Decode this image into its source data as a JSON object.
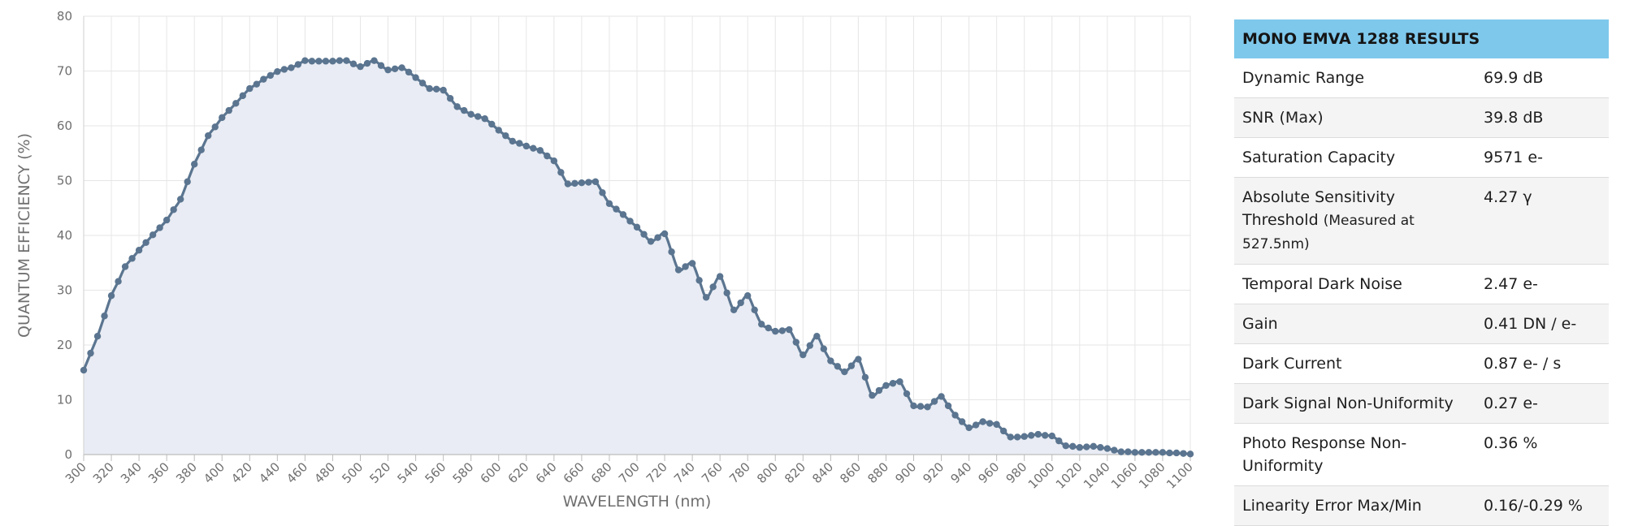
{
  "chart_data": {
    "type": "line",
    "title": "",
    "xlabel": "WAVELENGTH (nm)",
    "ylabel": "QUANTUM EFFICIENCY (%)",
    "xlim": [
      300,
      1100
    ],
    "ylim": [
      0,
      80
    ],
    "grid": true,
    "fill_area": true,
    "line_color": "#5b7590",
    "fill_color": "#e9ecf4",
    "x_ticks": [
      300,
      320,
      340,
      360,
      380,
      400,
      420,
      440,
      460,
      480,
      500,
      520,
      540,
      560,
      580,
      600,
      620,
      640,
      660,
      680,
      700,
      720,
      740,
      760,
      780,
      800,
      820,
      840,
      860,
      880,
      900,
      920,
      940,
      960,
      980,
      1000,
      1020,
      1040,
      1060,
      1080,
      1100
    ],
    "y_ticks": [
      0,
      10,
      20,
      30,
      40,
      50,
      60,
      70,
      80
    ],
    "x": [
      300,
      305,
      310,
      315,
      320,
      325,
      330,
      335,
      340,
      345,
      350,
      355,
      360,
      365,
      370,
      375,
      380,
      385,
      390,
      395,
      400,
      405,
      410,
      415,
      420,
      425,
      430,
      435,
      440,
      445,
      450,
      455,
      460,
      465,
      470,
      475,
      480,
      485,
      490,
      495,
      500,
      505,
      510,
      515,
      520,
      525,
      530,
      535,
      540,
      545,
      550,
      555,
      560,
      565,
      570,
      575,
      580,
      585,
      590,
      595,
      600,
      605,
      610,
      615,
      620,
      625,
      630,
      635,
      640,
      645,
      650,
      655,
      660,
      665,
      670,
      675,
      680,
      685,
      690,
      695,
      700,
      705,
      710,
      715,
      720,
      725,
      730,
      735,
      740,
      745,
      750,
      755,
      760,
      765,
      770,
      775,
      780,
      785,
      790,
      795,
      800,
      805,
      810,
      815,
      820,
      825,
      830,
      835,
      840,
      845,
      850,
      855,
      860,
      865,
      870,
      875,
      880,
      885,
      890,
      895,
      900,
      905,
      910,
      915,
      920,
      925,
      930,
      935,
      940,
      945,
      950,
      955,
      960,
      965,
      970,
      975,
      980,
      985,
      990,
      995,
      1000,
      1005,
      1010,
      1015,
      1020,
      1025,
      1030,
      1035,
      1040,
      1045,
      1050,
      1055,
      1060,
      1065,
      1070,
      1075,
      1080,
      1085,
      1090,
      1095,
      1100
    ],
    "series": [
      {
        "name": "Quantum Efficiency",
        "values": [
          15.4,
          18.5,
          21.6,
          25.3,
          29,
          31.6,
          34.3,
          35.8,
          37.3,
          38.7,
          40.1,
          41.4,
          42.8,
          44.7,
          46.6,
          49.8,
          53,
          55.6,
          58.2,
          59.8,
          61.5,
          62.8,
          64.1,
          65.5,
          66.8,
          67.6,
          68.5,
          69.2,
          69.9,
          70.3,
          70.6,
          71.2,
          71.9,
          71.8,
          71.8,
          71.8,
          71.8,
          71.9,
          71.9,
          71.3,
          70.8,
          71.4,
          71.9,
          71,
          70.2,
          70.4,
          70.6,
          69.8,
          68.8,
          67.8,
          66.8,
          66.7,
          66.5,
          65,
          63.5,
          62.8,
          62.1,
          61.7,
          61.3,
          60.3,
          59.2,
          58.2,
          57.2,
          56.8,
          56.3,
          55.9,
          55.5,
          54.5,
          53.6,
          51.5,
          49.4,
          49.5,
          49.6,
          49.7,
          49.8,
          47.8,
          45.8,
          44.8,
          43.8,
          42.6,
          41.5,
          40.2,
          38.9,
          39.6,
          40.3,
          37,
          33.7,
          34.3,
          34.9,
          31.8,
          28.7,
          30.6,
          32.5,
          29.5,
          26.4,
          27.7,
          29,
          26.4,
          23.8,
          23.1,
          22.5,
          22.6,
          22.8,
          20.5,
          18.2,
          19.9,
          21.6,
          19.3,
          17.1,
          16.1,
          15.1,
          16.2,
          17.4,
          14.1,
          10.8,
          11.7,
          12.6,
          13,
          13.3,
          11.1,
          8.9,
          8.8,
          8.7,
          9.7,
          10.6,
          8.9,
          7.2,
          6,
          4.9,
          5.4,
          6,
          5.7,
          5.5,
          4.3,
          3.2,
          3.2,
          3.3,
          3.5,
          3.7,
          3.5,
          3.4,
          2.5,
          1.6,
          1.5,
          1.3,
          1.4,
          1.5,
          1.3,
          1.1,
          0.8,
          0.5,
          0.5,
          0.4,
          0.4,
          0.4,
          0.4,
          0.4,
          0.3,
          0.3,
          0.2,
          0.1
        ]
      }
    ]
  },
  "results": {
    "title": "MONO EMVA 1288 RESULTS",
    "rows": [
      {
        "label": "Dynamic Range",
        "value": "69.9 dB"
      },
      {
        "label": "SNR (Max)",
        "value": "39.8 dB"
      },
      {
        "label": "Saturation Capacity",
        "value": "9571 e-"
      },
      {
        "label": "Absolute Sensitivity Threshold",
        "note": "(Measured at 527.5nm)",
        "value": "4.27 γ"
      },
      {
        "label": "Temporal Dark Noise",
        "value": "2.47 e-"
      },
      {
        "label": "Gain",
        "value": "0.41 DN / e-"
      },
      {
        "label": "Dark Current",
        "value": "0.87 e- / s"
      },
      {
        "label": "Dark Signal Non-Uniformity",
        "value": "0.27 e-"
      },
      {
        "label": "Photo Response Non-Uniformity",
        "value": "0.36 %"
      },
      {
        "label": "Linearity Error Max/Min",
        "value": "0.16/-0.29 %"
      }
    ]
  }
}
